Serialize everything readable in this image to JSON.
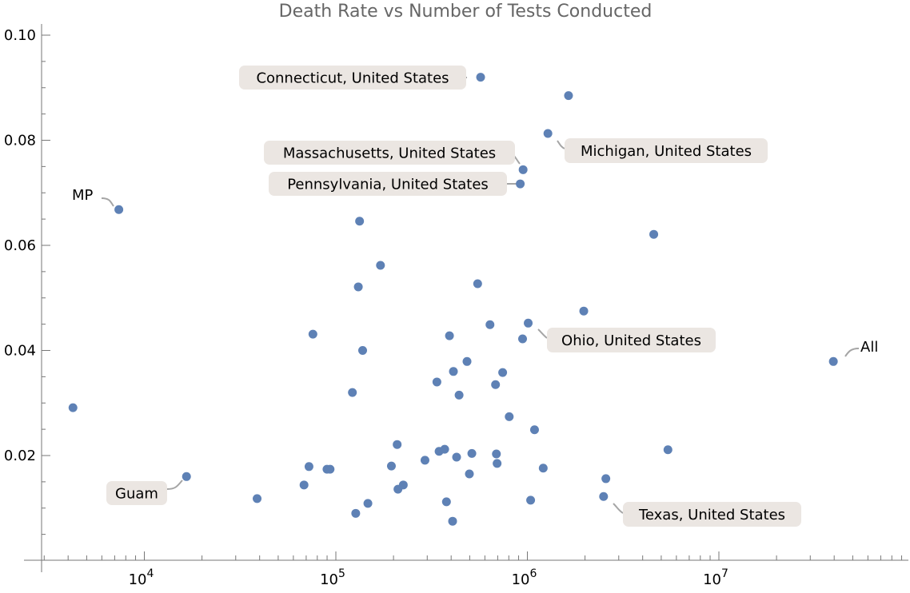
{
  "chart_data": {
    "type": "scatter",
    "title": "Death Rate vs Number of Tests Conducted",
    "xlabel": "",
    "ylabel": "",
    "xscale": "log",
    "xlim": [
      2900,
      95000000
    ],
    "ylim": [
      0,
      0.102
    ],
    "x_ticks": [
      {
        "base": "10",
        "exp": "4",
        "value": 10000
      },
      {
        "base": "10",
        "exp": "5",
        "value": 100000
      },
      {
        "base": "10",
        "exp": "6",
        "value": 1000000
      },
      {
        "base": "10",
        "exp": "7",
        "value": 10000000
      }
    ],
    "y_ticks": [
      "0.02",
      "0.04",
      "0.06",
      "0.08",
      "0.10"
    ],
    "y_tick_values": [
      0.02,
      0.04,
      0.06,
      0.08,
      0.1
    ],
    "grid": false,
    "color": "#5e81b5",
    "points": [
      {
        "x": 4240,
        "y": 0.0291
      },
      {
        "x": 7360,
        "y": 0.0668,
        "label": "MP"
      },
      {
        "x": 16600,
        "y": 0.016,
        "label": "Guam"
      },
      {
        "x": 38800,
        "y": 0.0118
      },
      {
        "x": 75900,
        "y": 0.0431
      },
      {
        "x": 68200,
        "y": 0.0144
      },
      {
        "x": 72400,
        "y": 0.0179
      },
      {
        "x": 89900,
        "y": 0.0174
      },
      {
        "x": 93300,
        "y": 0.0174
      },
      {
        "x": 122000,
        "y": 0.032
      },
      {
        "x": 127000,
        "y": 0.009
      },
      {
        "x": 131000,
        "y": 0.0521
      },
      {
        "x": 133000,
        "y": 0.0646
      },
      {
        "x": 138000,
        "y": 0.04
      },
      {
        "x": 147000,
        "y": 0.0109
      },
      {
        "x": 171000,
        "y": 0.0562
      },
      {
        "x": 195000,
        "y": 0.018
      },
      {
        "x": 209000,
        "y": 0.0221
      },
      {
        "x": 211000,
        "y": 0.0136
      },
      {
        "x": 225000,
        "y": 0.0144
      },
      {
        "x": 292000,
        "y": 0.0191
      },
      {
        "x": 337000,
        "y": 0.034
      },
      {
        "x": 346000,
        "y": 0.0208
      },
      {
        "x": 370000,
        "y": 0.0212
      },
      {
        "x": 378000,
        "y": 0.0112
      },
      {
        "x": 392000,
        "y": 0.0428
      },
      {
        "x": 411000,
        "y": 0.036
      },
      {
        "x": 407000,
        "y": 0.0075
      },
      {
        "x": 427000,
        "y": 0.0197
      },
      {
        "x": 440000,
        "y": 0.0315
      },
      {
        "x": 484000,
        "y": 0.0379
      },
      {
        "x": 498000,
        "y": 0.0165
      },
      {
        "x": 513000,
        "y": 0.0204
      },
      {
        "x": 550000,
        "y": 0.0527
      },
      {
        "x": 570000,
        "y": 0.092,
        "label": "Connecticut, United States"
      },
      {
        "x": 638000,
        "y": 0.0449
      },
      {
        "x": 682000,
        "y": 0.0335
      },
      {
        "x": 689000,
        "y": 0.0203
      },
      {
        "x": 695000,
        "y": 0.0185
      },
      {
        "x": 743000,
        "y": 0.0358
      },
      {
        "x": 804000,
        "y": 0.0274
      },
      {
        "x": 918000,
        "y": 0.0717,
        "label": "Pennsylvania, United States"
      },
      {
        "x": 944000,
        "y": 0.0422
      },
      {
        "x": 950000,
        "y": 0.0744,
        "label": "Massachusetts, United States"
      },
      {
        "x": 1010000,
        "y": 0.0452,
        "label": "Ohio, United States"
      },
      {
        "x": 1040000,
        "y": 0.0115
      },
      {
        "x": 1090000,
        "y": 0.0249
      },
      {
        "x": 1210000,
        "y": 0.0176
      },
      {
        "x": 1280000,
        "y": 0.0813,
        "label": "Michigan, United States"
      },
      {
        "x": 1640000,
        "y": 0.0885
      },
      {
        "x": 1970000,
        "y": 0.0475
      },
      {
        "x": 2500000,
        "y": 0.0122,
        "label": "Texas, United States"
      },
      {
        "x": 2570000,
        "y": 0.0156
      },
      {
        "x": 4570000,
        "y": 0.0621
      },
      {
        "x": 5420000,
        "y": 0.0211
      },
      {
        "x": 39600000,
        "y": 0.0379,
        "label": "All"
      }
    ]
  }
}
